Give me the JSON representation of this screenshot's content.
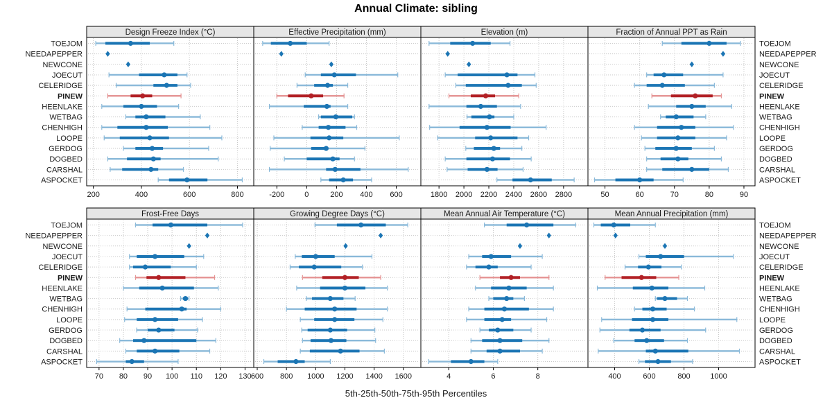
{
  "title": "Annual Climate: sibling",
  "caption": "5th-25th-50th-75th-95th Percentiles",
  "colors": {
    "blue": "#1b75b4",
    "blue_light": "#8ab9d9",
    "red": "#b22025",
    "red_light": "#e59393",
    "grid": "#c9c9c9",
    "strip_bg": "#e6e6e6",
    "border": "#000000",
    "text": "#1a1a1a"
  },
  "chart_data": {
    "type": "percentile-dotplot-trellis",
    "percentile_levels": [
      5,
      25,
      50,
      75,
      95
    ],
    "highlight_site": "PINEW",
    "sites": [
      "TOEJOM",
      "NEEDAPEPPER",
      "NEWCONE",
      "JOECUT",
      "CELERIDGE",
      "PINEW",
      "HEENLAKE",
      "WETBAG",
      "CHENHIGH",
      "LOOPE",
      "GERDOG",
      "DOGBED",
      "CARSHAL",
      "ASPOCKET"
    ],
    "panels": [
      {
        "title": "Design Freeze Index (°C)",
        "xlim": [
          175,
          865
        ],
        "ticks": [
          200,
          400,
          600,
          800
        ],
        "values": [
          [
            210,
            250,
            355,
            435,
            535
          ],
          [
            260
          ],
          [
            345
          ],
          [
            265,
            390,
            495,
            550,
            590
          ],
          [
            295,
            450,
            505,
            550,
            605
          ],
          [
            260,
            355,
            405,
            445,
            565
          ],
          [
            235,
            325,
            400,
            465,
            555
          ],
          [
            335,
            375,
            420,
            500,
            645
          ],
          [
            235,
            300,
            420,
            510,
            685
          ],
          [
            245,
            310,
            435,
            515,
            735
          ],
          [
            325,
            375,
            445,
            490,
            680
          ],
          [
            260,
            340,
            450,
            480,
            720
          ],
          [
            270,
            320,
            440,
            470,
            575
          ],
          [
            470,
            515,
            590,
            675,
            820
          ]
        ]
      },
      {
        "title": "Effective Precipitation (mm)",
        "xlim": [
          -350,
          760
        ],
        "ticks": [
          -200,
          0,
          200,
          400,
          600
        ],
        "values": [
          [
            -295,
            -240,
            -110,
            0,
            150
          ],
          [
            -170
          ],
          [
            165
          ],
          [
            -10,
            95,
            185,
            330,
            610
          ],
          [
            -65,
            50,
            140,
            175,
            275
          ],
          [
            -200,
            -125,
            30,
            110,
            250
          ],
          [
            -250,
            -20,
            135,
            160,
            275
          ],
          [
            80,
            95,
            195,
            305,
            320
          ],
          [
            -30,
            80,
            145,
            260,
            335
          ],
          [
            -220,
            25,
            150,
            245,
            620
          ],
          [
            -245,
            30,
            130,
            145,
            390
          ],
          [
            -150,
            0,
            175,
            220,
            320
          ],
          [
            -250,
            130,
            190,
            360,
            680
          ],
          [
            95,
            150,
            245,
            310,
            435
          ]
        ]
      },
      {
        "title": "Elevation (m)",
        "xlim": [
          1660,
          2990
        ],
        "ticks": [
          1800,
          2000,
          2200,
          2400,
          2600,
          2800
        ],
        "values": [
          [
            1720,
            1890,
            2070,
            2215,
            2370
          ],
          [
            1870
          ],
          [
            2040
          ],
          [
            1850,
            1950,
            2345,
            2430,
            2570
          ],
          [
            1935,
            2015,
            2355,
            2465,
            2580
          ],
          [
            1880,
            2055,
            2175,
            2250,
            2440
          ],
          [
            1720,
            2020,
            2135,
            2265,
            2455
          ],
          [
            2025,
            2060,
            2205,
            2245,
            2400
          ],
          [
            1725,
            1965,
            2185,
            2375,
            2660
          ],
          [
            1790,
            2090,
            2215,
            2430,
            2520
          ],
          [
            2015,
            2080,
            2240,
            2290,
            2465
          ],
          [
            1850,
            2020,
            2230,
            2370,
            2540
          ],
          [
            1865,
            2030,
            2185,
            2270,
            2475
          ],
          [
            2265,
            2390,
            2535,
            2705,
            2885
          ]
        ]
      },
      {
        "title": "Fraction of Annual PPT as Rain",
        "xlim": [
          45.3,
          93
        ],
        "ticks": [
          50,
          60,
          70,
          80,
          90
        ],
        "values": [
          [
            66.5,
            72,
            80,
            85,
            89
          ],
          [
            84
          ],
          [
            75
          ],
          [
            62,
            64,
            67,
            72.5,
            84
          ],
          [
            58.5,
            62,
            66.5,
            73,
            81.5
          ],
          [
            63.5,
            69,
            76,
            81,
            83.5
          ],
          [
            62.5,
            70.5,
            75,
            79,
            86.5
          ],
          [
            66,
            67.5,
            70.5,
            75.5,
            79
          ],
          [
            58.5,
            65,
            72,
            76,
            87
          ],
          [
            60.5,
            65,
            71,
            76,
            85
          ],
          [
            61.5,
            64.5,
            70.5,
            75,
            81.5
          ],
          [
            62,
            66,
            71,
            74,
            83.5
          ],
          [
            62,
            66.5,
            75,
            80,
            85.5
          ],
          [
            47,
            53,
            60,
            64,
            72.5
          ]
        ]
      },
      {
        "title": "Frost-Free Days",
        "xlim": [
          65.2,
          133.3
        ],
        "ticks": [
          70,
          80,
          90,
          100,
          110,
          120,
          130
        ],
        "values": [
          [
            85,
            92,
            99.5,
            114.5,
            129
          ],
          [
            114.5
          ],
          [
            107
          ],
          [
            82.5,
            85.5,
            93,
            105,
            113
          ],
          [
            82.5,
            84,
            89,
            99.5,
            110
          ],
          [
            85,
            89.5,
            94.5,
            105.5,
            117.5
          ],
          [
            80,
            86.5,
            96,
            109,
            119
          ],
          [
            103.5,
            104.5,
            105.5,
            106.5,
            107
          ],
          [
            81.5,
            89,
            104,
            106,
            120
          ],
          [
            80.5,
            85.5,
            93,
            102.5,
            112.5
          ],
          [
            85.5,
            90,
            94.5,
            101,
            110.5
          ],
          [
            78.5,
            84,
            88.5,
            110,
            118
          ],
          [
            81,
            85.5,
            93,
            103,
            115.5
          ],
          [
            69,
            81,
            83.5,
            88.5,
            102.5
          ]
        ]
      },
      {
        "title": "Growing Degree Days (°C)",
        "xlim": [
          581,
          1715
        ],
        "ticks": [
          600,
          800,
          1000,
          1200,
          1400,
          1600
        ],
        "values": [
          [
            995,
            1145,
            1310,
            1480,
            1630
          ],
          [
            1445
          ],
          [
            1205
          ],
          [
            860,
            905,
            1000,
            1130,
            1385
          ],
          [
            825,
            885,
            990,
            1175,
            1320
          ],
          [
            910,
            1045,
            1200,
            1295,
            1445
          ],
          [
            870,
            1030,
            1200,
            1340,
            1490
          ],
          [
            935,
            975,
            1100,
            1190,
            1270
          ],
          [
            800,
            925,
            1130,
            1280,
            1490
          ],
          [
            895,
            990,
            1130,
            1265,
            1460
          ],
          [
            905,
            945,
            1100,
            1215,
            1405
          ],
          [
            910,
            965,
            1105,
            1210,
            1410
          ],
          [
            895,
            960,
            1170,
            1300,
            1470
          ],
          [
            645,
            740,
            865,
            925,
            1100
          ]
        ]
      },
      {
        "title": "Mean Annual Air Temperature (°C)",
        "xlim": [
          2.78,
          10.22
        ],
        "ticks": [
          4,
          6,
          8
        ],
        "values": [
          [
            5.6,
            6.6,
            7.5,
            8.7,
            9.7
          ],
          [
            8.5
          ],
          [
            7.2
          ],
          [
            4.9,
            5.5,
            5.9,
            6.8,
            8.2
          ],
          [
            4.8,
            5.2,
            5.8,
            6.2,
            7.7
          ],
          [
            5.4,
            6.3,
            6.8,
            7.2,
            8.5
          ],
          [
            5.2,
            5.9,
            6.7,
            7.5,
            8.7
          ],
          [
            5.8,
            6.0,
            6.6,
            6.9,
            7.4
          ],
          [
            4.9,
            5.6,
            6.5,
            7.6,
            8.7
          ],
          [
            4.8,
            5.6,
            6.4,
            6.8,
            8.4
          ],
          [
            5.4,
            5.8,
            6.2,
            6.9,
            7.7
          ],
          [
            5.0,
            5.5,
            6.3,
            7.3,
            8.5
          ],
          [
            5.0,
            5.7,
            6.3,
            7.2,
            8.2
          ],
          [
            3.1,
            4.1,
            5.0,
            5.6,
            6.2
          ]
        ]
      },
      {
        "title": "Mean Annual Precipitation (mm)",
        "xlim": [
          250,
          1206
        ],
        "ticks": [
          400,
          600,
          800,
          1000
        ],
        "values": [
          [
            280,
            320,
            395,
            490,
            635
          ],
          [
            405
          ],
          [
            690
          ],
          [
            540,
            580,
            665,
            800,
            1085
          ],
          [
            460,
            535,
            595,
            670,
            785
          ],
          [
            345,
            440,
            555,
            640,
            770
          ],
          [
            300,
            505,
            615,
            710,
            920
          ],
          [
            635,
            645,
            690,
            760,
            820
          ],
          [
            515,
            560,
            620,
            700,
            860
          ],
          [
            325,
            500,
            620,
            710,
            1105
          ],
          [
            315,
            485,
            560,
            665,
            925
          ],
          [
            395,
            515,
            585,
            685,
            820
          ],
          [
            305,
            580,
            635,
            825,
            1120
          ],
          [
            540,
            575,
            650,
            725,
            850
          ]
        ]
      }
    ]
  }
}
